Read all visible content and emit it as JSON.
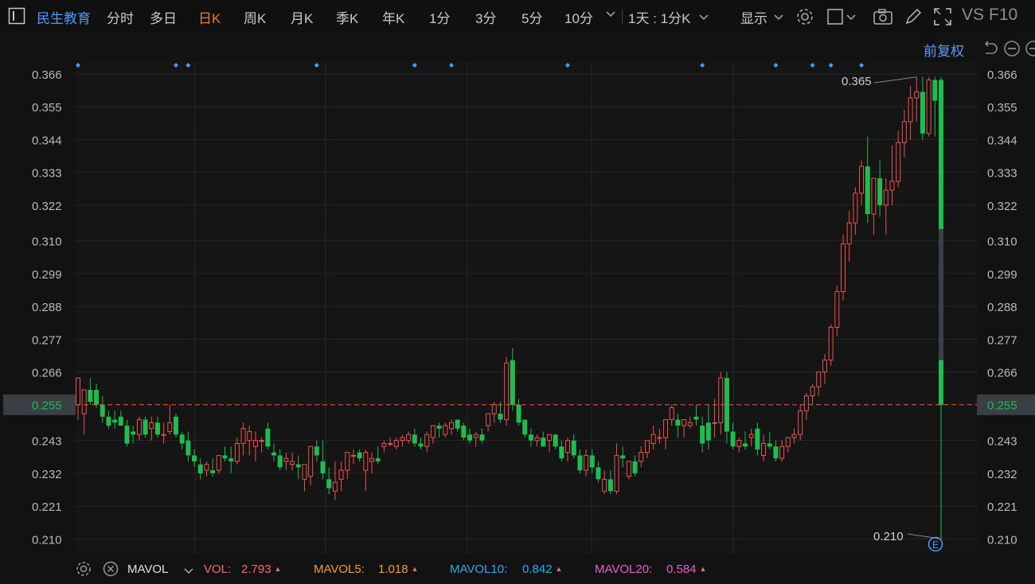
{
  "toolbar": {
    "stock_name": "民生教育",
    "tabs": [
      "分时",
      "多日",
      "日K",
      "周K",
      "月K",
      "季K",
      "年K",
      "1分",
      "3分",
      "5分",
      "10分"
    ],
    "active_tab": "日K",
    "period_select": "1天 : 1分K",
    "display": "显示",
    "vs": "VS",
    "f10": "F10",
    "adjust": "前复权"
  },
  "colors": {
    "up": "#f0514f",
    "down": "#1ebd4f",
    "accent": "#f0792a",
    "link": "#4d9bff",
    "current_price_line": "#e0652c",
    "vol": "#f26d6d",
    "mavol5": "#f39b35",
    "mavol10": "#2fa8f5",
    "mavol20": "#e65ecf"
  },
  "chart_data": {
    "type": "candlestick",
    "ylim": [
      0.205,
      0.37
    ],
    "y_ticks": [
      "0.366",
      "0.355",
      "0.344",
      "0.333",
      "0.322",
      "0.310",
      "0.299",
      "0.288",
      "0.277",
      "0.266",
      "0.255",
      "0.243",
      "0.232",
      "0.221",
      "0.210"
    ],
    "current_price": "0.255",
    "high_label": "0.365",
    "low_label": "0.210",
    "event_marker": "E",
    "marker_bar_index": [
      0,
      16,
      18,
      39,
      55,
      61,
      80,
      102,
      114,
      120,
      123,
      128
    ],
    "candles": [
      [
        0.255,
        0.264,
        0.25,
        0.264
      ],
      [
        0.252,
        0.26,
        0.245,
        0.26
      ],
      [
        0.26,
        0.264,
        0.255,
        0.256
      ],
      [
        0.26,
        0.262,
        0.254,
        0.255
      ],
      [
        0.255,
        0.258,
        0.249,
        0.251
      ],
      [
        0.251,
        0.253,
        0.247,
        0.248
      ],
      [
        0.25,
        0.253,
        0.247,
        0.249
      ],
      [
        0.251,
        0.253,
        0.248,
        0.248
      ],
      [
        0.248,
        0.25,
        0.241,
        0.242
      ],
      [
        0.246,
        0.248,
        0.242,
        0.245
      ],
      [
        0.245,
        0.251,
        0.243,
        0.25
      ],
      [
        0.25,
        0.251,
        0.244,
        0.245
      ],
      [
        0.247,
        0.251,
        0.243,
        0.249
      ],
      [
        0.249,
        0.251,
        0.244,
        0.245
      ],
      [
        0.245,
        0.249,
        0.242,
        0.245
      ],
      [
        0.246,
        0.255,
        0.245,
        0.249
      ],
      [
        0.251,
        0.252,
        0.244,
        0.245
      ],
      [
        0.245,
        0.246,
        0.24,
        0.242
      ],
      [
        0.243,
        0.246,
        0.236,
        0.238
      ],
      [
        0.238,
        0.24,
        0.234,
        0.236
      ],
      [
        0.235,
        0.237,
        0.23,
        0.232
      ],
      [
        0.233,
        0.236,
        0.231,
        0.235
      ],
      [
        0.233,
        0.237,
        0.231,
        0.232
      ],
      [
        0.233,
        0.238,
        0.232,
        0.238
      ],
      [
        0.238,
        0.241,
        0.236,
        0.237
      ],
      [
        0.237,
        0.241,
        0.232,
        0.236
      ],
      [
        0.236,
        0.244,
        0.235,
        0.242
      ],
      [
        0.242,
        0.249,
        0.238,
        0.247
      ],
      [
        0.243,
        0.248,
        0.238,
        0.246
      ],
      [
        0.241,
        0.246,
        0.236,
        0.243
      ],
      [
        0.243,
        0.244,
        0.239,
        0.243
      ],
      [
        0.247,
        0.249,
        0.24,
        0.241
      ],
      [
        0.239,
        0.242,
        0.236,
        0.238
      ],
      [
        0.238,
        0.24,
        0.233,
        0.234
      ],
      [
        0.236,
        0.239,
        0.233,
        0.237
      ],
      [
        0.235,
        0.239,
        0.233,
        0.236
      ],
      [
        0.235,
        0.238,
        0.23,
        0.234
      ],
      [
        0.23,
        0.235,
        0.226,
        0.235
      ],
      [
        0.231,
        0.241,
        0.228,
        0.241
      ],
      [
        0.241,
        0.243,
        0.236,
        0.238
      ],
      [
        0.236,
        0.243,
        0.23,
        0.232
      ],
      [
        0.23,
        0.234,
        0.225,
        0.227
      ],
      [
        0.226,
        0.236,
        0.223,
        0.229
      ],
      [
        0.23,
        0.236,
        0.226,
        0.233
      ],
      [
        0.233,
        0.239,
        0.23,
        0.239
      ],
      [
        0.238,
        0.24,
        0.235,
        0.238
      ],
      [
        0.239,
        0.24,
        0.236,
        0.237
      ],
      [
        0.233,
        0.24,
        0.226,
        0.239
      ],
      [
        0.236,
        0.239,
        0.232,
        0.237
      ],
      [
        0.237,
        0.241,
        0.235,
        0.236
      ],
      [
        0.241,
        0.243,
        0.239,
        0.242
      ],
      [
        0.242,
        0.244,
        0.241,
        0.242
      ],
      [
        0.241,
        0.244,
        0.24,
        0.243
      ],
      [
        0.243,
        0.245,
        0.241,
        0.244
      ],
      [
        0.243,
        0.246,
        0.242,
        0.245
      ],
      [
        0.245,
        0.247,
        0.241,
        0.242
      ],
      [
        0.242,
        0.244,
        0.24,
        0.241
      ],
      [
        0.241,
        0.246,
        0.239,
        0.245
      ],
      [
        0.244,
        0.248,
        0.242,
        0.248
      ],
      [
        0.248,
        0.249,
        0.244,
        0.247
      ],
      [
        0.245,
        0.249,
        0.244,
        0.248
      ],
      [
        0.247,
        0.25,
        0.245,
        0.249
      ],
      [
        0.25,
        0.25,
        0.246,
        0.247
      ],
      [
        0.248,
        0.249,
        0.243,
        0.244
      ],
      [
        0.245,
        0.247,
        0.242,
        0.243
      ],
      [
        0.244,
        0.246,
        0.241,
        0.245
      ],
      [
        0.245,
        0.247,
        0.242,
        0.243
      ],
      [
        0.248,
        0.252,
        0.246,
        0.252
      ],
      [
        0.252,
        0.256,
        0.249,
        0.255
      ],
      [
        0.252,
        0.256,
        0.249,
        0.25
      ],
      [
        0.25,
        0.271,
        0.248,
        0.269
      ],
      [
        0.27,
        0.274,
        0.253,
        0.255
      ],
      [
        0.255,
        0.257,
        0.248,
        0.249
      ],
      [
        0.25,
        0.25,
        0.244,
        0.245
      ],
      [
        0.245,
        0.247,
        0.241,
        0.243
      ],
      [
        0.243,
        0.245,
        0.241,
        0.244
      ],
      [
        0.244,
        0.246,
        0.241,
        0.241
      ],
      [
        0.243,
        0.245,
        0.239,
        0.245
      ],
      [
        0.245,
        0.245,
        0.24,
        0.241
      ],
      [
        0.241,
        0.243,
        0.236,
        0.237
      ],
      [
        0.239,
        0.244,
        0.236,
        0.243
      ],
      [
        0.243,
        0.245,
        0.237,
        0.238
      ],
      [
        0.238,
        0.24,
        0.232,
        0.233
      ],
      [
        0.233,
        0.24,
        0.231,
        0.238
      ],
      [
        0.238,
        0.24,
        0.232,
        0.234
      ],
      [
        0.234,
        0.236,
        0.229,
        0.23
      ],
      [
        0.226,
        0.233,
        0.225,
        0.23
      ],
      [
        0.23,
        0.233,
        0.225,
        0.226
      ],
      [
        0.226,
        0.242,
        0.225,
        0.238
      ],
      [
        0.238,
        0.241,
        0.234,
        0.237
      ],
      [
        0.231,
        0.236,
        0.23,
        0.236
      ],
      [
        0.236,
        0.238,
        0.231,
        0.232
      ],
      [
        0.236,
        0.241,
        0.234,
        0.239
      ],
      [
        0.239,
        0.243,
        0.237,
        0.243
      ],
      [
        0.242,
        0.248,
        0.24,
        0.245
      ],
      [
        0.244,
        0.247,
        0.242,
        0.244
      ],
      [
        0.244,
        0.249,
        0.24,
        0.25
      ],
      [
        0.25,
        0.255,
        0.248,
        0.254
      ],
      [
        0.25,
        0.252,
        0.244,
        0.248
      ],
      [
        0.248,
        0.25,
        0.244,
        0.25
      ],
      [
        0.248,
        0.251,
        0.247,
        0.249
      ],
      [
        0.251,
        0.255,
        0.248,
        0.25
      ],
      [
        0.248,
        0.251,
        0.239,
        0.242
      ],
      [
        0.249,
        0.255,
        0.24,
        0.243
      ],
      [
        0.249,
        0.257,
        0.244,
        0.249
      ],
      [
        0.249,
        0.266,
        0.245,
        0.264
      ],
      [
        0.264,
        0.266,
        0.242,
        0.246
      ],
      [
        0.246,
        0.249,
        0.24,
        0.241
      ],
      [
        0.241,
        0.244,
        0.239,
        0.243
      ],
      [
        0.242,
        0.246,
        0.24,
        0.241
      ],
      [
        0.244,
        0.247,
        0.241,
        0.245
      ],
      [
        0.247,
        0.249,
        0.238,
        0.24
      ],
      [
        0.238,
        0.245,
        0.236,
        0.242
      ],
      [
        0.242,
        0.246,
        0.24,
        0.241
      ],
      [
        0.241,
        0.243,
        0.236,
        0.237
      ],
      [
        0.237,
        0.243,
        0.236,
        0.241
      ],
      [
        0.241,
        0.244,
        0.239,
        0.244
      ],
      [
        0.244,
        0.247,
        0.242,
        0.245
      ],
      [
        0.245,
        0.255,
        0.243,
        0.253
      ],
      [
        0.253,
        0.259,
        0.25,
        0.258
      ],
      [
        0.258,
        0.262,
        0.255,
        0.261
      ],
      [
        0.261,
        0.266,
        0.258,
        0.266
      ],
      [
        0.266,
        0.272,
        0.262,
        0.27
      ],
      [
        0.27,
        0.282,
        0.268,
        0.281
      ],
      [
        0.281,
        0.295,
        0.278,
        0.293
      ],
      [
        0.293,
        0.312,
        0.29,
        0.309
      ],
      [
        0.309,
        0.32,
        0.303,
        0.316
      ],
      [
        0.316,
        0.328,
        0.312,
        0.326
      ],
      [
        0.326,
        0.337,
        0.322,
        0.335
      ],
      [
        0.335,
        0.345,
        0.316,
        0.319
      ],
      [
        0.319,
        0.331,
        0.312,
        0.331
      ],
      [
        0.331,
        0.337,
        0.318,
        0.322
      ],
      [
        0.322,
        0.331,
        0.312,
        0.327
      ],
      [
        0.327,
        0.342,
        0.322,
        0.33
      ],
      [
        0.33,
        0.347,
        0.328,
        0.343
      ],
      [
        0.343,
        0.354,
        0.338,
        0.35
      ],
      [
        0.35,
        0.362,
        0.344,
        0.358
      ],
      [
        0.358,
        0.365,
        0.35,
        0.36
      ],
      [
        0.36,
        0.365,
        0.344,
        0.346
      ],
      [
        0.346,
        0.365,
        0.345,
        0.364
      ],
      [
        0.364,
        0.365,
        0.345,
        0.357
      ],
      [
        0.364,
        0.365,
        0.21,
        0.255
      ]
    ]
  },
  "indicator": {
    "name": "MAVOL",
    "vol_label": "VOL:",
    "vol_value": "2.793",
    "mavol5_label": "MAVOL5:",
    "mavol5_value": "1.018",
    "mavol10_label": "MAVOL10:",
    "mavol10_value": "0.842",
    "mavol20_label": "MAVOL20:",
    "mavol20_value": "0.584"
  }
}
